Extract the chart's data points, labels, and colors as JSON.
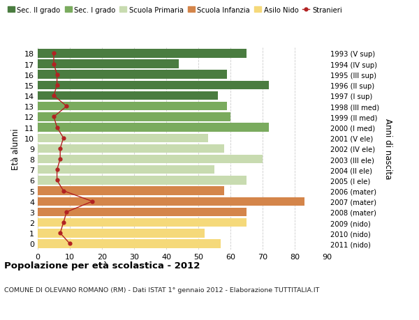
{
  "ages": [
    18,
    17,
    16,
    15,
    14,
    13,
    12,
    11,
    10,
    9,
    8,
    7,
    6,
    5,
    4,
    3,
    2,
    1,
    0
  ],
  "years": [
    "1993 (V sup)",
    "1994 (IV sup)",
    "1995 (III sup)",
    "1996 (II sup)",
    "1997 (I sup)",
    "1998 (III med)",
    "1999 (II med)",
    "2000 (I med)",
    "2001 (V ele)",
    "2002 (IV ele)",
    "2003 (III ele)",
    "2004 (II ele)",
    "2005 (I ele)",
    "2006 (mater)",
    "2007 (mater)",
    "2008 (mater)",
    "2009 (nido)",
    "2010 (nido)",
    "2011 (nido)"
  ],
  "bar_values": [
    65,
    44,
    59,
    72,
    56,
    59,
    60,
    72,
    53,
    58,
    70,
    55,
    65,
    58,
    83,
    65,
    65,
    52,
    57
  ],
  "bar_colors": [
    "#4a7c40",
    "#4a7c40",
    "#4a7c40",
    "#4a7c40",
    "#4a7c40",
    "#7aab5e",
    "#7aab5e",
    "#7aab5e",
    "#c8dbb0",
    "#c8dbb0",
    "#c8dbb0",
    "#c8dbb0",
    "#c8dbb0",
    "#d4854a",
    "#d4854a",
    "#d4854a",
    "#f5d97a",
    "#f5d97a",
    "#f5d97a"
  ],
  "stranieri_values": [
    5,
    5,
    6,
    6,
    5,
    9,
    5,
    6,
    8,
    7,
    7,
    6,
    6,
    8,
    17,
    9,
    8,
    7,
    10
  ],
  "xlim": [
    0,
    90
  ],
  "xticks": [
    0,
    10,
    20,
    30,
    40,
    50,
    60,
    70,
    80,
    90
  ],
  "ylabel_left": "À alunni",
  "ylabel_right": "Anni di nascita",
  "yleft_label": "Età alunni",
  "title": "Popolazione per età scolastica - 2012",
  "subtitle": "COMUNE DI OLEVANO ROMANO (RM) - Dati ISTAT 1° gennaio 2012 - Elaborazione TUTTITALIA.IT",
  "legend_labels": [
    "Sec. II grado",
    "Sec. I grado",
    "Scuola Primaria",
    "Scuola Infanzia",
    "Asilo Nido",
    "Stranieri"
  ],
  "legend_colors": [
    "#4a7c40",
    "#7aab5e",
    "#c8dbb0",
    "#d4854a",
    "#f5d97a",
    "#b22222"
  ],
  "bg_color": "#ffffff",
  "bar_height": 0.82,
  "grid_color": "#cccccc"
}
